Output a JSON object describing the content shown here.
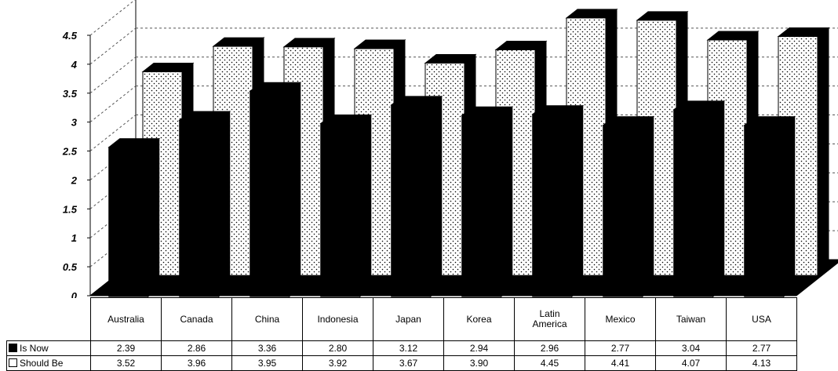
{
  "chart_data": {
    "type": "bar",
    "title": "",
    "xlabel": "",
    "ylabel": "",
    "ylim": [
      0,
      4.5
    ],
    "yticks": [
      "0",
      "0.5",
      "1",
      "1.5",
      "2",
      "2.5",
      "3",
      "3.5",
      "4",
      "4.5"
    ],
    "grid": true,
    "style": "3d",
    "categories": [
      "Australia",
      "Canada",
      "China",
      "Indonesia",
      "Japan",
      "Korea",
      "Latin America",
      "Mexico",
      "Taiwan",
      "USA"
    ],
    "series": [
      {
        "name": "Is Now",
        "values": [
          2.39,
          2.86,
          3.36,
          2.8,
          3.12,
          2.94,
          2.96,
          2.77,
          3.04,
          2.77
        ],
        "labels": [
          "2.39",
          "2.86",
          "3.36",
          "2.80",
          "3.12",
          "2.94",
          "2.96",
          "2.77",
          "3.04",
          "2.77"
        ],
        "color": "#000000"
      },
      {
        "name": "Should Be",
        "values": [
          3.52,
          3.96,
          3.95,
          3.92,
          3.67,
          3.9,
          4.45,
          4.41,
          4.07,
          4.13
        ],
        "labels": [
          "3.52",
          "3.96",
          "3.95",
          "3.92",
          "3.67",
          "3.90",
          "4.45",
          "4.41",
          "4.07",
          "4.13"
        ],
        "color": "#ffffff",
        "pattern": "dotted"
      }
    ]
  }
}
